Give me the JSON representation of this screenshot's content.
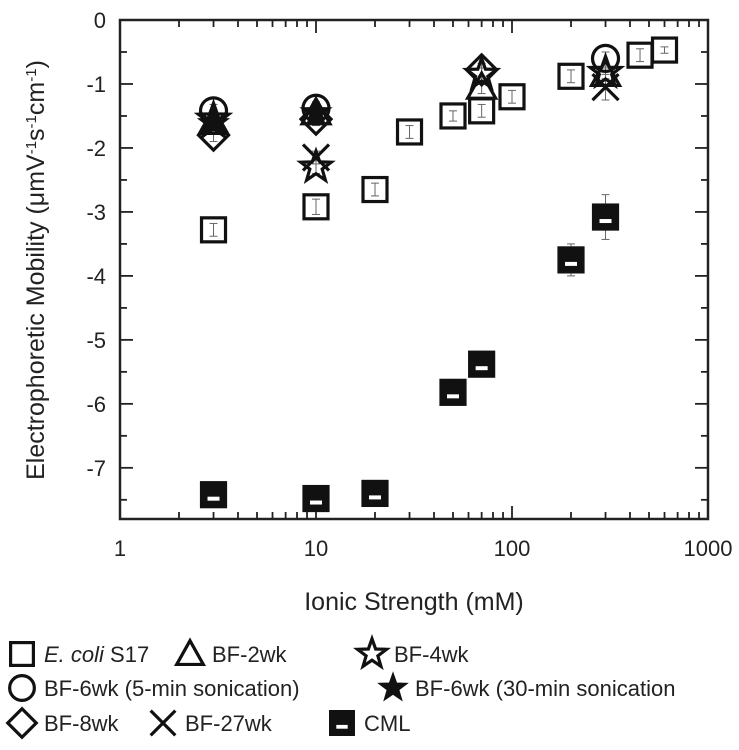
{
  "chart_data": {
    "type": "scatter",
    "xscale": "log",
    "xlim": [
      1,
      1000
    ],
    "ylim": [
      -7.8,
      0
    ],
    "xticks": [
      1,
      10,
      100,
      1000
    ],
    "xtick_labels": [
      "1",
      "10",
      "100",
      "1000"
    ],
    "yticks": [
      0,
      -1,
      -2,
      -3,
      -4,
      -5,
      -6,
      -7
    ],
    "ytick_labels": [
      "0",
      "-1",
      "-2",
      "-3",
      "-4",
      "-5",
      "-6",
      "-7"
    ],
    "xlabel": "Ionic Strength (mM)",
    "ylabel_parts": [
      "Electrophoretic Mobility (",
      "μ",
      "mV",
      "-1",
      "s",
      "-1",
      "cm",
      "-1",
      ")"
    ],
    "legend_placement": "bottom",
    "series": [
      {
        "name": "E. coli S17",
        "name_italic": "E. coli",
        "name_rest": " S17",
        "marker": "open-square",
        "points": [
          [
            3,
            -3.28,
            0.1
          ],
          [
            10,
            -2.92,
            0.12
          ],
          [
            20,
            -2.65,
            0.1
          ],
          [
            30,
            -1.75,
            0.1
          ],
          [
            50,
            -1.5,
            0.08
          ],
          [
            70,
            -1.42,
            0.1
          ],
          [
            100,
            -1.2,
            0.1
          ],
          [
            200,
            -0.88,
            0.1
          ],
          [
            450,
            -0.55,
            0.1
          ],
          [
            600,
            -0.47,
            0.05
          ]
        ]
      },
      {
        "name": "BF-2wk",
        "marker": "open-triangle",
        "points": [
          [
            3,
            -1.6,
            0.1
          ],
          [
            10,
            -1.45,
            0.1
          ],
          [
            70,
            -1.05,
            0.1
          ],
          [
            300,
            -0.85,
            0.1
          ]
        ]
      },
      {
        "name": "BF-4wk",
        "marker": "open-star",
        "points": [
          [
            3,
            -1.55,
            0.1
          ],
          [
            10,
            -2.3,
            0.1
          ],
          [
            70,
            -0.85,
            0.1
          ],
          [
            300,
            -0.82,
            0.1
          ]
        ]
      },
      {
        "name": "BF-6wk (5-min sonication)",
        "marker": "open-circle",
        "points": [
          [
            3,
            -1.42,
            0.1
          ],
          [
            10,
            -1.38,
            0.1
          ],
          [
            300,
            -0.6,
            0.1
          ]
        ]
      },
      {
        "name": "BF-6wk (30-min sonication",
        "marker": "filled-star",
        "points": [
          [
            3,
            -1.62,
            0.1
          ],
          [
            10,
            -1.45,
            0.1
          ]
        ]
      },
      {
        "name": "BF-8wk",
        "marker": "open-diamond",
        "points": [
          [
            3,
            -1.8,
            0.1
          ],
          [
            10,
            -1.55,
            0.1
          ],
          [
            70,
            -0.78,
            0.1
          ]
        ]
      },
      {
        "name": "BF-27wk",
        "marker": "cross",
        "points": [
          [
            3,
            -1.65,
            0.1
          ],
          [
            10,
            -2.15,
            0.1
          ],
          [
            300,
            -1.05,
            0.2
          ]
        ]
      },
      {
        "name": "CML",
        "marker": "half-filled-square",
        "points": [
          [
            3,
            -7.42,
            0.1
          ],
          [
            10,
            -7.48,
            0.1
          ],
          [
            20,
            -7.4,
            0.1
          ],
          [
            50,
            -5.82,
            0.1
          ],
          [
            70,
            -5.38,
            0.1
          ],
          [
            200,
            -3.75,
            0.25
          ],
          [
            300,
            -3.08,
            0.35
          ]
        ]
      }
    ]
  }
}
